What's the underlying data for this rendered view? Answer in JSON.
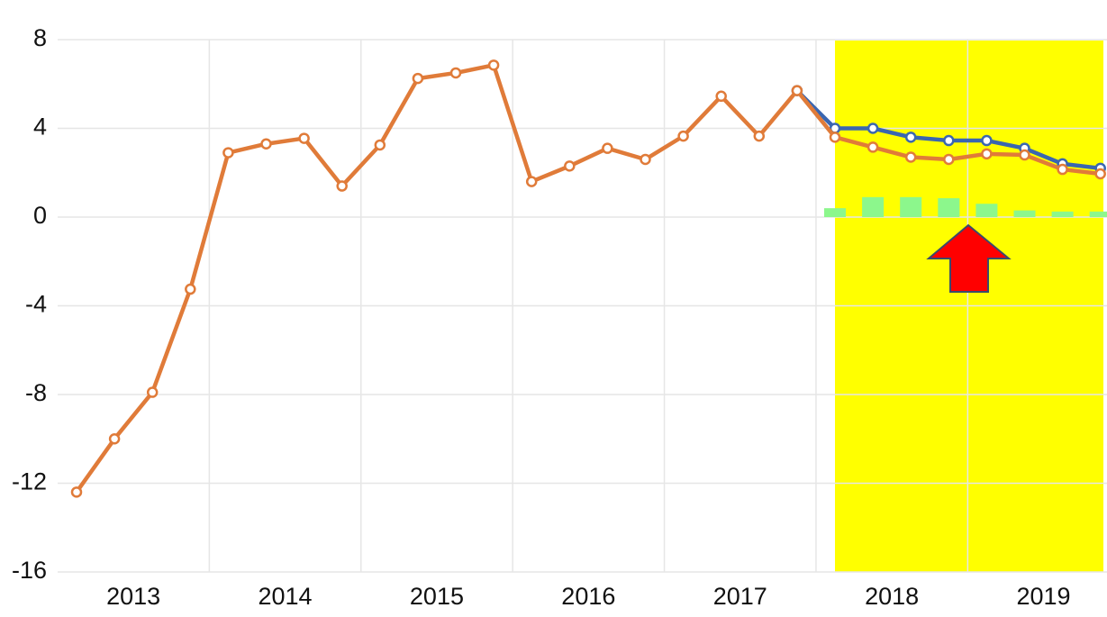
{
  "chart_data": {
    "type": "line",
    "categories": [
      null,
      null,
      null,
      null,
      null,
      null,
      null,
      null,
      null,
      null,
      null,
      null,
      null,
      null,
      null,
      null,
      null,
      null,
      null,
      null,
      null,
      null,
      null,
      null,
      null,
      null,
      null,
      null
    ],
    "year_labels": [
      "2013",
      "2014",
      "2015",
      "2016",
      "2017",
      "2018",
      "2019"
    ],
    "series": [
      {
        "name": null,
        "type": "bar",
        "color": "#8cf78c",
        "values": [
          null,
          null,
          null,
          null,
          null,
          null,
          null,
          null,
          null,
          null,
          null,
          null,
          null,
          null,
          null,
          null,
          null,
          null,
          null,
          null,
          0.4,
          0.9,
          0.9,
          0.85,
          0.6,
          0.3,
          0.25,
          0.25
        ]
      },
      {
        "name": null,
        "type": "line",
        "color": "#3a66b0",
        "values": [
          null,
          null,
          null,
          null,
          null,
          null,
          null,
          null,
          null,
          null,
          null,
          null,
          null,
          null,
          null,
          null,
          null,
          null,
          null,
          5.7,
          4.0,
          4.0,
          3.6,
          3.45,
          3.45,
          3.1,
          2.4,
          2.2
        ]
      },
      {
        "name": null,
        "type": "line",
        "color": "#e07b39",
        "values": [
          -12.4,
          -10.0,
          -7.9,
          -3.25,
          2.9,
          3.3,
          3.55,
          1.4,
          3.25,
          6.25,
          6.5,
          6.85,
          1.6,
          2.3,
          3.1,
          2.6,
          3.65,
          5.45,
          3.65,
          5.7,
          3.6,
          3.15,
          2.7,
          2.6,
          2.85,
          2.8,
          2.15,
          1.95
        ]
      }
    ],
    "ylim": [
      -16,
      8
    ],
    "yticks": [
      -16,
      -12,
      -8,
      -4,
      0,
      4,
      8
    ],
    "grid": true
  }
}
